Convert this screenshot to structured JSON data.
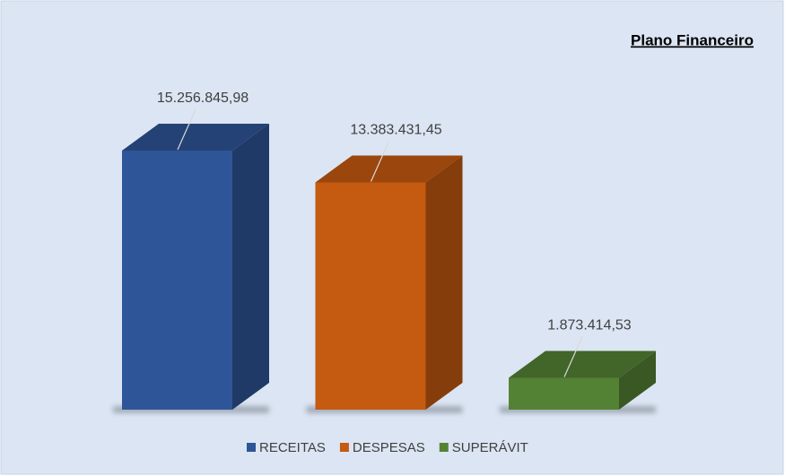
{
  "chart_data": {
    "type": "bar3d",
    "title": "Plano Financeiro",
    "categories": [
      "RECEITAS",
      "DESPESAS",
      "SUPERÁVIT"
    ],
    "values": [
      15256845.98,
      13383431.45,
      1873414.53
    ],
    "value_labels": [
      "15.256.845,98",
      "13.383.431,45",
      "1.873.414,53"
    ],
    "colors": [
      "#2e5597",
      "#c55a11",
      "#548235"
    ],
    "legend": "bottom"
  }
}
